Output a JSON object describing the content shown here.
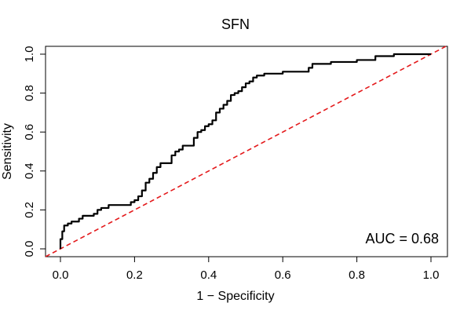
{
  "chart_data": {
    "type": "line",
    "title": "SFN",
    "xlabel": "1 − Specificity",
    "ylabel": "Sensitivity",
    "xlim": [
      0,
      1
    ],
    "ylim": [
      0,
      1
    ],
    "xticks": [
      0.0,
      0.2,
      0.4,
      0.6,
      0.8,
      1.0
    ],
    "yticks": [
      0.0,
      0.2,
      0.4,
      0.6,
      0.8,
      1.0
    ],
    "xtick_labels": [
      "0.0",
      "0.2",
      "0.4",
      "0.6",
      "0.8",
      "1.0"
    ],
    "ytick_labels": [
      "0.0",
      "0.2",
      "0.4",
      "0.6",
      "0.8",
      "1.0"
    ],
    "grid": false,
    "annotation": "AUC = 0.68",
    "series": [
      {
        "name": "ROC curve",
        "color": "#000000",
        "step": true,
        "points": [
          [
            0.0,
            0.0
          ],
          [
            0.0,
            0.03
          ],
          [
            0.005,
            0.05
          ],
          [
            0.005,
            0.07
          ],
          [
            0.01,
            0.09
          ],
          [
            0.01,
            0.11
          ],
          [
            0.015,
            0.12
          ],
          [
            0.02,
            0.12
          ],
          [
            0.02,
            0.13
          ],
          [
            0.03,
            0.13
          ],
          [
            0.03,
            0.14
          ],
          [
            0.05,
            0.14
          ],
          [
            0.05,
            0.155
          ],
          [
            0.06,
            0.155
          ],
          [
            0.06,
            0.17
          ],
          [
            0.09,
            0.17
          ],
          [
            0.1,
            0.18
          ],
          [
            0.11,
            0.2
          ],
          [
            0.12,
            0.21
          ],
          [
            0.13,
            0.21
          ],
          [
            0.14,
            0.225
          ],
          [
            0.19,
            0.225
          ],
          [
            0.2,
            0.24
          ],
          [
            0.21,
            0.25
          ],
          [
            0.22,
            0.27
          ],
          [
            0.23,
            0.3
          ],
          [
            0.23,
            0.32
          ],
          [
            0.24,
            0.34
          ],
          [
            0.25,
            0.36
          ],
          [
            0.26,
            0.39
          ],
          [
            0.26,
            0.41
          ],
          [
            0.27,
            0.42
          ],
          [
            0.27,
            0.44
          ],
          [
            0.3,
            0.44
          ],
          [
            0.3,
            0.47
          ],
          [
            0.31,
            0.48
          ],
          [
            0.32,
            0.5
          ],
          [
            0.33,
            0.51
          ],
          [
            0.34,
            0.53
          ],
          [
            0.36,
            0.53
          ],
          [
            0.36,
            0.55
          ],
          [
            0.37,
            0.57
          ],
          [
            0.37,
            0.58
          ],
          [
            0.38,
            0.6
          ],
          [
            0.39,
            0.61
          ],
          [
            0.4,
            0.63
          ],
          [
            0.41,
            0.64
          ],
          [
            0.42,
            0.66
          ],
          [
            0.42,
            0.68
          ],
          [
            0.43,
            0.7
          ],
          [
            0.44,
            0.72
          ],
          [
            0.45,
            0.74
          ],
          [
            0.46,
            0.76
          ],
          [
            0.47,
            0.79
          ],
          [
            0.48,
            0.8
          ],
          [
            0.49,
            0.81
          ],
          [
            0.5,
            0.83
          ],
          [
            0.51,
            0.85
          ],
          [
            0.52,
            0.86
          ],
          [
            0.53,
            0.88
          ],
          [
            0.55,
            0.89
          ],
          [
            0.6,
            0.9
          ],
          [
            0.61,
            0.91
          ],
          [
            0.67,
            0.91
          ],
          [
            0.68,
            0.93
          ],
          [
            0.73,
            0.95
          ],
          [
            0.8,
            0.96
          ],
          [
            0.85,
            0.97
          ],
          [
            0.86,
            0.99
          ],
          [
            0.9,
            0.99
          ],
          [
            1.0,
            1.0
          ]
        ]
      },
      {
        "name": "Diagonal",
        "color": "#e41a1c",
        "dashed": true,
        "points": [
          [
            -0.04,
            -0.04
          ],
          [
            1.04,
            1.04
          ]
        ]
      }
    ]
  }
}
